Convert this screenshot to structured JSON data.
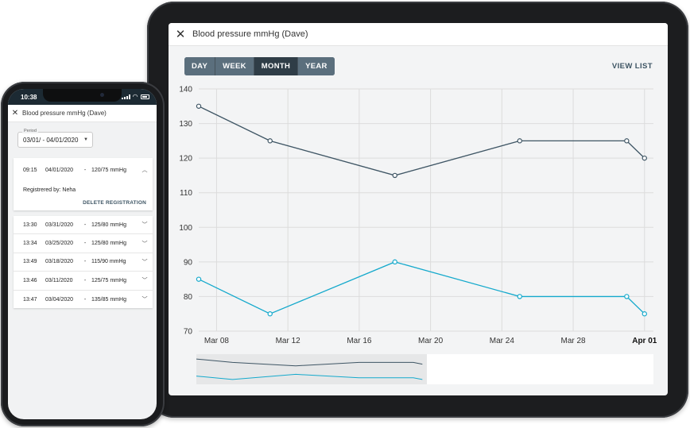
{
  "tablet": {
    "header": {
      "close_icon": "close-icon",
      "title": "Blood pressure mmHg (Dave)"
    },
    "range_tabs": [
      {
        "label": "DAY",
        "active": false
      },
      {
        "label": "WEEK",
        "active": false
      },
      {
        "label": "MONTH",
        "active": true
      },
      {
        "label": "YEAR",
        "active": false
      }
    ],
    "view_list_label": "VIEW LIST"
  },
  "chart_data": {
    "type": "line",
    "x_tick_labels": [
      "Mar 08",
      "Mar 12",
      "Mar 16",
      "Mar 20",
      "Mar 24",
      "Mar 28",
      "Apr 01"
    ],
    "x_tick_days": [
      8,
      12,
      16,
      20,
      24,
      28,
      32
    ],
    "y_ticks": [
      70,
      80,
      90,
      100,
      110,
      120,
      130,
      140
    ],
    "ylim": [
      70,
      140
    ],
    "xlim_days": [
      7,
      32.5
    ],
    "grid": true,
    "series": [
      {
        "color": "#3e5564",
        "points": [
          [
            7,
            135
          ],
          [
            11,
            125
          ],
          [
            18,
            115
          ],
          [
            25,
            125
          ],
          [
            31,
            125
          ],
          [
            32,
            120
          ]
        ]
      },
      {
        "color": "#14a9cc",
        "points": [
          [
            7,
            85
          ],
          [
            11,
            75
          ],
          [
            18,
            90
          ],
          [
            25,
            80
          ],
          [
            31,
            80
          ],
          [
            32,
            75
          ]
        ]
      }
    ]
  },
  "phone": {
    "status": {
      "time": "10:38"
    },
    "header": {
      "close_icon": "close-icon",
      "title": "Blood pressure mmHg (Dave)"
    },
    "period": {
      "label": "Period",
      "value": "03/01/ - 04/01/2020"
    },
    "expanded": {
      "time": "09:15",
      "date": "04/01/2020",
      "sep": "-",
      "value": "120/75 mmHg",
      "registered_by": "Registrered by: Neha",
      "delete_label": "DELETE REGISTRATION"
    },
    "registrations": [
      {
        "time": "13:30",
        "date": "03/31/2020",
        "sep": "-",
        "value": "125/80 mmHg"
      },
      {
        "time": "13:34",
        "date": "03/25/2020",
        "sep": "-",
        "value": "125/80 mmHg"
      },
      {
        "time": "13:49",
        "date": "03/18/2020",
        "sep": "-",
        "value": "115/90 mmHg"
      },
      {
        "time": "13:46",
        "date": "03/11/2020",
        "sep": "-",
        "value": "125/75 mmHg"
      },
      {
        "time": "13:47",
        "date": "03/04/2020",
        "sep": "-",
        "value": "135/85 mmHg"
      }
    ]
  }
}
